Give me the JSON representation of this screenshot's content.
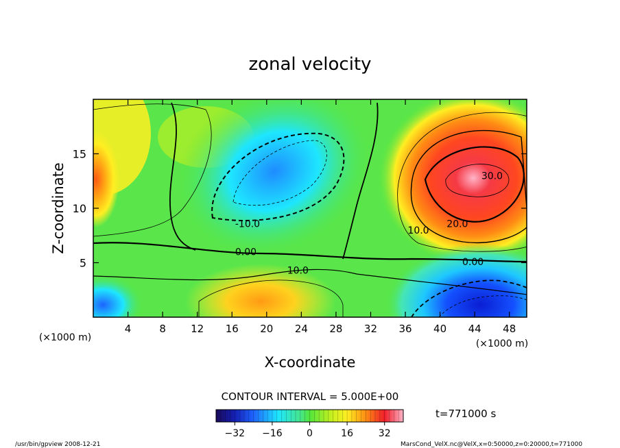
{
  "chart_data": {
    "type": "heatmap",
    "title": "zonal velocity",
    "xlabel": "X-coordinate",
    "ylabel": "Z-coordinate",
    "x_units_left": "(×1000 m)",
    "x_units_right": "(×1000 m)",
    "xlim": [
      0,
      50
    ],
    "ylim": [
      0,
      20
    ],
    "x_ticks": [
      "4",
      "8",
      "12",
      "16",
      "20",
      "24",
      "28",
      "32",
      "36",
      "40",
      "44",
      "48"
    ],
    "x_tick_values": [
      4,
      8,
      12,
      16,
      20,
      24,
      28,
      32,
      36,
      40,
      44,
      48
    ],
    "y_ticks": [
      "5",
      "10",
      "15"
    ],
    "y_tick_values": [
      5,
      10,
      15
    ],
    "contour_interval_text": "CONTOUR INTERVAL = 5.000E+00",
    "contour_labels": [
      {
        "text": "30.0",
        "x": 46.0,
        "z": 13.0
      },
      {
        "text": "20.0",
        "x": 42.0,
        "z": 8.6
      },
      {
        "text": "10.0",
        "x": 37.5,
        "z": 8.0
      },
      {
        "text": "0.00",
        "x": 43.8,
        "z": 5.1
      },
      {
        "text": "-10.0",
        "x": 17.8,
        "z": 8.6
      },
      {
        "text": "0.00",
        "x": 17.6,
        "z": 6.0
      },
      {
        "text": "10.0",
        "x": 23.6,
        "z": 4.3
      }
    ],
    "colorbar_labels": [
      "−32",
      "−16",
      "0",
      "16",
      "32"
    ],
    "colorbar_values": [
      -32,
      -16,
      0,
      16,
      32
    ],
    "colorbar_range": [
      -40,
      40
    ],
    "time_label": "t=771000 s",
    "footer_left": "/usr/bin/gpview   2008-12-21",
    "footer_right": "MarsCond_VelX.nc@VelX,x=0:50000,z=0:20000,t=771000",
    "colors": {
      "min": "#1a0a5a",
      "low": "#0a2ee6",
      "cyan": "#1ee6ff",
      "green": "#52e63c",
      "yellow": "#ffee22",
      "orange": "#ff7d14",
      "red": "#f01e2a",
      "max": "#ffb4c8"
    }
  }
}
